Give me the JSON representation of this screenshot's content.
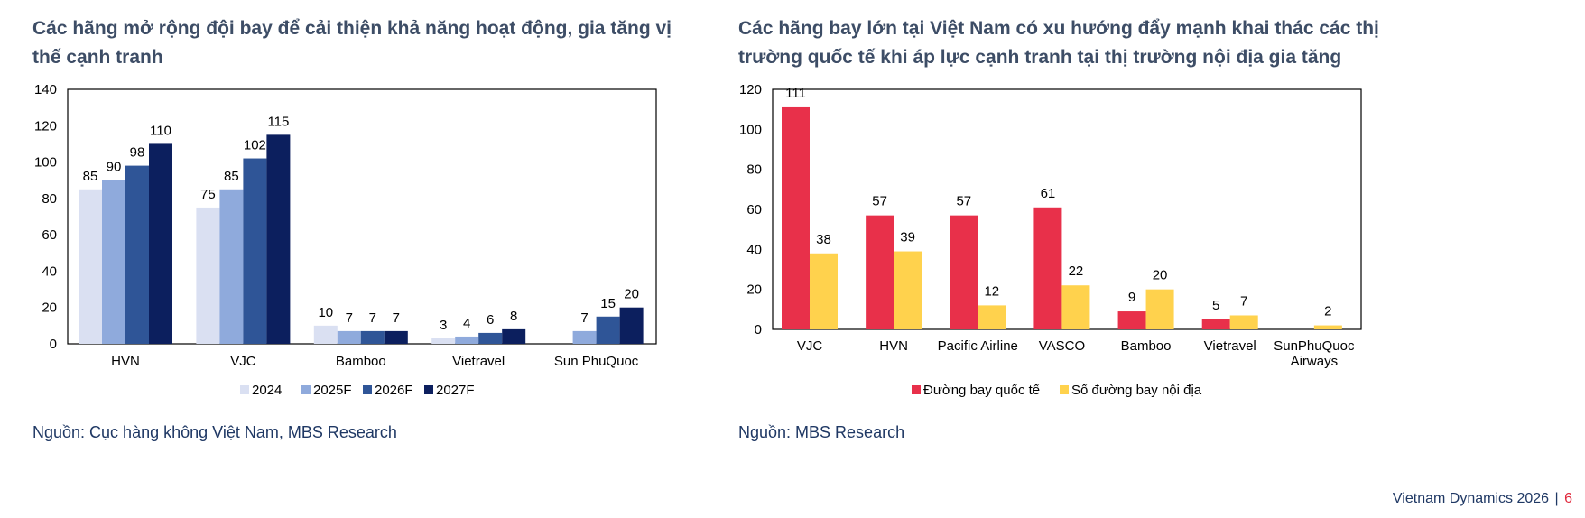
{
  "left_panel": {
    "title_line1": "Các hãng mở rộng đội bay để cải thiện khả năng hoạt động, gia tăng vị",
    "title_line2": "thế cạnh tranh",
    "source": "Nguồn: Cục hàng không Việt Nam, MBS Research"
  },
  "right_panel": {
    "title_line1": "Các hãng bay lớn tại Việt Nam có xu hướng đẩy mạnh khai thác các thị",
    "title_line2": "trường quốc tế khi áp lực cạnh tranh tại thị trường nội địa gia tăng",
    "source": "Nguồn: MBS Research"
  },
  "footer": {
    "report": "Vietnam Dynamics 2026",
    "separator": "|",
    "page": "6"
  },
  "chart_data": [
    {
      "type": "bar",
      "categories": [
        "HVN",
        "VJC",
        "Bamboo",
        "Vietravel",
        "Sun PhuQuoc"
      ],
      "series": [
        {
          "name": "2024",
          "values": [
            85,
            75,
            10,
            3,
            null
          ],
          "color": "#dae0f2"
        },
        {
          "name": "2025F",
          "values": [
            90,
            85,
            7,
            4,
            7
          ],
          "color": "#8faadc"
        },
        {
          "name": "2026F",
          "values": [
            98,
            102,
            7,
            6,
            15
          ],
          "color": "#2f5597"
        },
        {
          "name": "2027F",
          "values": [
            110,
            115,
            7,
            8,
            20
          ],
          "color": "#0c1f5e"
        }
      ],
      "ylim": [
        0,
        140
      ],
      "yticks": [
        0,
        20,
        40,
        60,
        80,
        100,
        120,
        140
      ],
      "legend": "bottom",
      "grid": false,
      "title": "",
      "xlabel": "",
      "ylabel": ""
    },
    {
      "type": "bar",
      "categories": [
        "VJC",
        "HVN",
        "Pacific Airline",
        "VASCO",
        "Bamboo",
        "Vietravel",
        "SunPhuQuoc Airways"
      ],
      "category_lines": [
        [
          "VJC"
        ],
        [
          "HVN"
        ],
        [
          "Pacific Airline"
        ],
        [
          "VASCO"
        ],
        [
          "Bamboo"
        ],
        [
          "Vietravel"
        ],
        [
          "SunPhuQuoc",
          "Airways"
        ]
      ],
      "series": [
        {
          "name": "Đường bay quốc tế",
          "values": [
            111,
            57,
            57,
            61,
            9,
            5,
            null
          ],
          "color": "#e8304a"
        },
        {
          "name": "Số đường bay nội địa",
          "values": [
            38,
            39,
            12,
            22,
            20,
            7,
            2
          ],
          "color": "#ffd24d"
        }
      ],
      "ylim": [
        0,
        120
      ],
      "yticks": [
        0,
        20,
        40,
        60,
        80,
        100,
        120
      ],
      "legend": "bottom",
      "grid": false,
      "title": "",
      "xlabel": "",
      "ylabel": ""
    }
  ]
}
